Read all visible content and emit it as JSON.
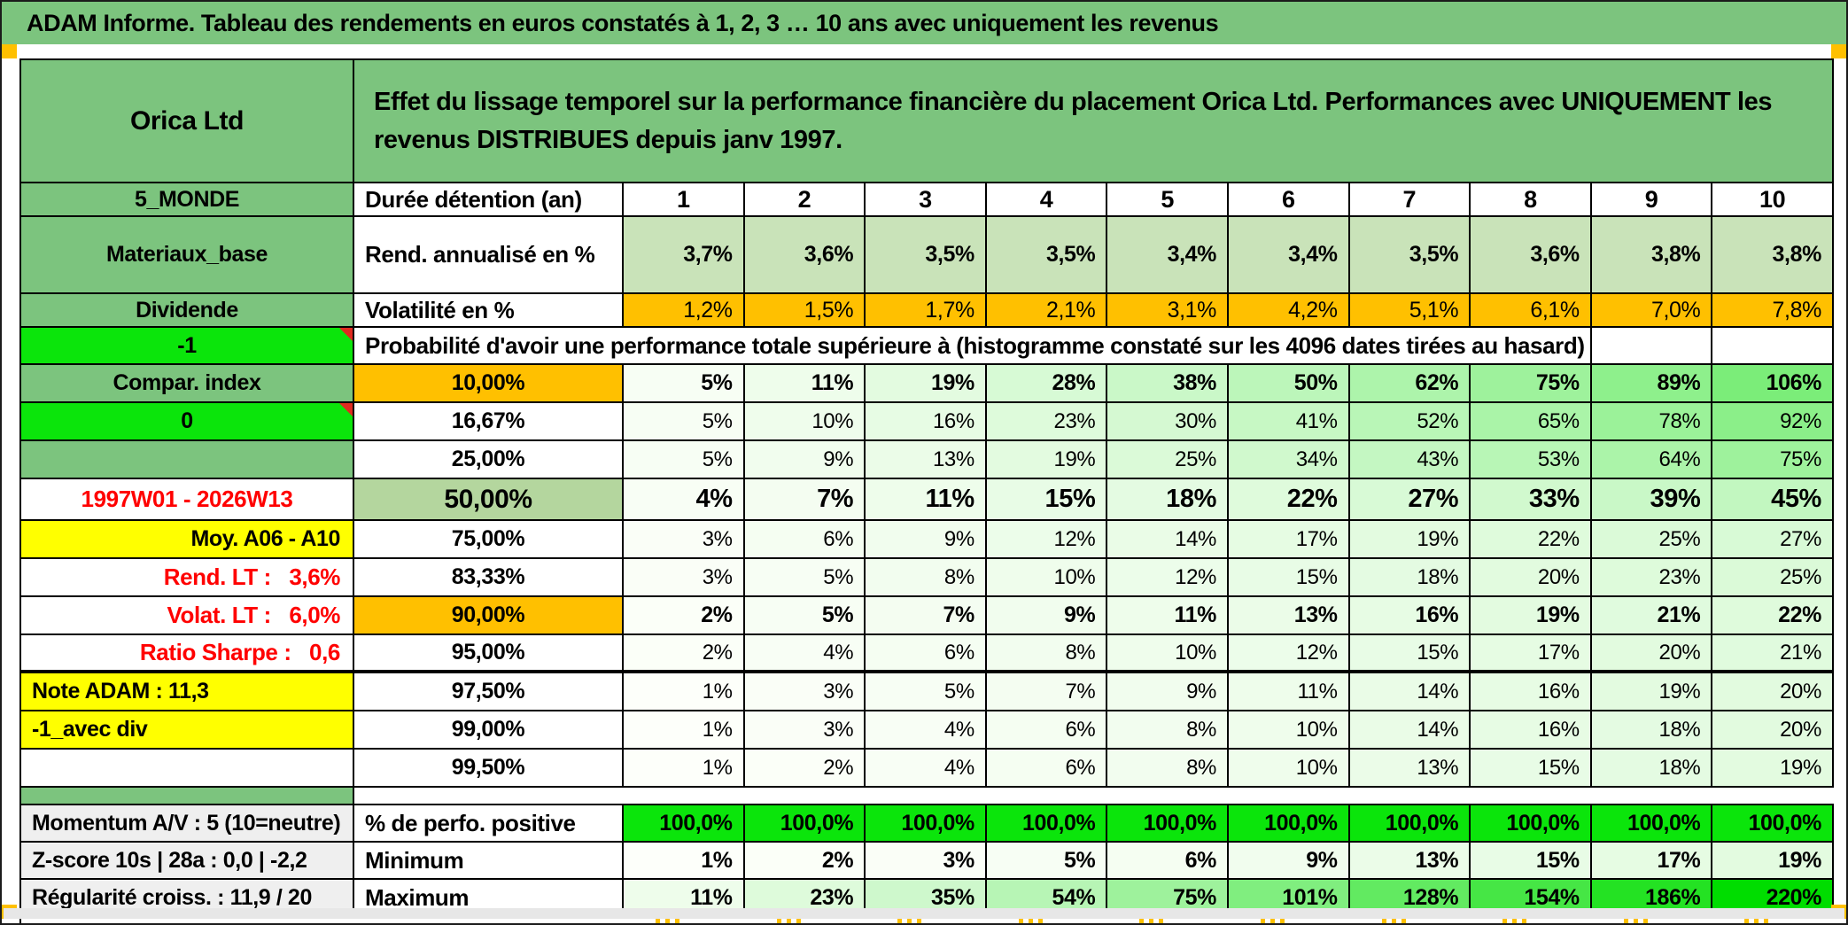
{
  "palette": {
    "header_green": "#7CC47E",
    "light_green": "#C9E3B9",
    "mid_green": "#B4D69E",
    "orange": "#FFC000",
    "bright_green": "#0BE50B",
    "heat_green": "#00DD00",
    "yellow": "#FFFF00",
    "red": "#FF0000",
    "gray_label": "#EFEFEF",
    "border": "#000000",
    "bottom_strip": "#E7E7E7"
  },
  "title_bar": "ADAM Informe. Tableau des rendements en euros constatés à 1, 2, 3 … 10 ans avec uniquement les revenus",
  "header": {
    "company": "Orica Ltd",
    "description": "Effet du lissage temporel sur la performance financière du placement Orica Ltd. Performances avec UNIQUEMENT les revenus DISTRIBUES depuis janv 1997."
  },
  "duration_row": {
    "label": "5_MONDE",
    "name": "Durée détention (an)",
    "columns": [
      "1",
      "2",
      "3",
      "4",
      "5",
      "6",
      "7",
      "8",
      "9",
      "10"
    ]
  },
  "annualized_row": {
    "label": "Materiaux_base",
    "name": "Rend. annualisé en %",
    "values": [
      "3,7%",
      "3,6%",
      "3,5%",
      "3,5%",
      "3,4%",
      "3,4%",
      "3,5%",
      "3,6%",
      "3,8%",
      "3,8%"
    ]
  },
  "volatility_row": {
    "label": "Dividende",
    "name": "Volatilité en %",
    "values": [
      "1,2%",
      "1,5%",
      "1,7%",
      "2,1%",
      "3,1%",
      "4,2%",
      "5,1%",
      "6,1%",
      "7,0%",
      "7,8%"
    ]
  },
  "probability_header": {
    "label": "-1",
    "text": "Probabilité d'avoir une performance totale supérieure à (histogramme constaté sur les 4096 dates tirées au hasard)"
  },
  "percentile_rows": [
    {
      "label": "Compar. index",
      "label_style": "green",
      "percentile": "10,00%",
      "pct_style": "orange",
      "values": [
        5,
        11,
        19,
        28,
        38,
        50,
        62,
        75,
        89,
        106
      ],
      "emphasis": "bold"
    },
    {
      "label": "0",
      "label_style": "bright",
      "comment": true,
      "percentile": "16,67%",
      "pct_style": "white",
      "values": [
        5,
        10,
        16,
        23,
        30,
        41,
        52,
        65,
        78,
        92
      ],
      "emphasis": "normal"
    },
    {
      "label": "",
      "label_style": "green",
      "percentile": "25,00%",
      "pct_style": "white",
      "values": [
        5,
        9,
        13,
        19,
        25,
        34,
        43,
        53,
        64,
        75
      ],
      "emphasis": "normal"
    },
    {
      "label": "1997W01 - 2026W13",
      "label_style": "red-center",
      "percentile": "50,00%",
      "pct_style": "green-big",
      "values": [
        4,
        7,
        11,
        15,
        18,
        22,
        27,
        33,
        39,
        45
      ],
      "emphasis": "big"
    },
    {
      "label": "Moy. A06 - A10",
      "label_style": "yellow-right",
      "percentile": "75,00%",
      "pct_style": "white",
      "values": [
        3,
        6,
        9,
        12,
        14,
        17,
        19,
        22,
        25,
        27
      ],
      "emphasis": "normal"
    },
    {
      "label": "Rend. LT :   3,6%",
      "label_style": "red-right",
      "percentile": "83,33%",
      "pct_style": "white",
      "values": [
        3,
        5,
        8,
        10,
        12,
        15,
        18,
        20,
        23,
        25
      ],
      "emphasis": "normal"
    },
    {
      "label": "Volat. LT :   6,0%",
      "label_style": "red-right",
      "percentile": "90,00%",
      "pct_style": "orange",
      "values": [
        2,
        5,
        7,
        9,
        11,
        13,
        16,
        19,
        21,
        22
      ],
      "emphasis": "bold"
    },
    {
      "label": "Ratio Sharpe :   0,6",
      "label_style": "red-right",
      "percentile": "95,00%",
      "pct_style": "white",
      "values": [
        2,
        4,
        6,
        8,
        10,
        12,
        15,
        17,
        20,
        21
      ],
      "emphasis": "normal",
      "thick_bottom": true
    },
    {
      "label": "Note ADAM : 11,3",
      "label_style": "yellow-left",
      "percentile": "97,50%",
      "pct_style": "white",
      "values": [
        1,
        3,
        5,
        7,
        9,
        11,
        14,
        16,
        19,
        20
      ],
      "emphasis": "normal"
    },
    {
      "label": "-1_avec div",
      "label_style": "yellow-left",
      "percentile": "99,00%",
      "pct_style": "white",
      "values": [
        1,
        3,
        4,
        6,
        8,
        10,
        14,
        16,
        18,
        20
      ],
      "emphasis": "normal"
    },
    {
      "label": "",
      "label_style": "white",
      "percentile": "99,50%",
      "pct_style": "white",
      "values": [
        1,
        2,
        4,
        6,
        8,
        10,
        13,
        15,
        18,
        19
      ],
      "emphasis": "normal"
    }
  ],
  "summary_rows": [
    {
      "label": "Momentum A/V : 5 (10=neutre)",
      "name": "% de perfo. positive",
      "values": [
        "100,0%",
        "100,0%",
        "100,0%",
        "100,0%",
        "100,0%",
        "100,0%",
        "100,0%",
        "100,0%",
        "100,0%",
        "100,0%"
      ],
      "fill": "bright"
    },
    {
      "label": "Z-score 10s | 28a : 0,0 | -2,2",
      "name": "Minimum",
      "values": [
        1,
        2,
        3,
        5,
        6,
        9,
        13,
        15,
        17,
        19
      ],
      "fill": "heat"
    },
    {
      "label": "Régularité croiss. : 11,9 / 20",
      "name": "Maximum",
      "values": [
        11,
        23,
        35,
        54,
        75,
        101,
        128,
        154,
        186,
        220
      ],
      "fill": "heat"
    }
  ]
}
